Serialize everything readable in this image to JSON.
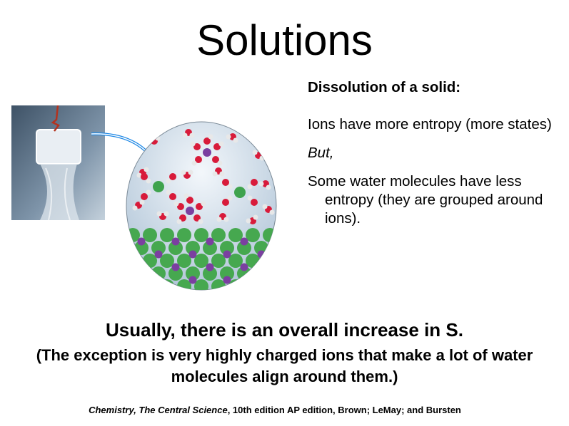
{
  "title": "Solutions",
  "panel": {
    "heading": "Dissolution of a solid:",
    "point1": "Ions have more entropy (more states)",
    "but": "But,",
    "point2": "Some water molecules have less entropy (they are grouped around ions)."
  },
  "headline": "Usually, there is an overall increase in S.",
  "exception": "(The exception is very highly charged ions that make a lot of water molecules align around them.)",
  "citation": {
    "book": "Chemistry, The Central Science",
    "rest": ", 10th edition AP edition, Brown; LeMay; and Bursten"
  },
  "colors": {
    "water_o": "#d81b3a",
    "chloride": "#3fa34d",
    "sodium": "#7b3fa0",
    "arrow": "#1e88e5"
  }
}
